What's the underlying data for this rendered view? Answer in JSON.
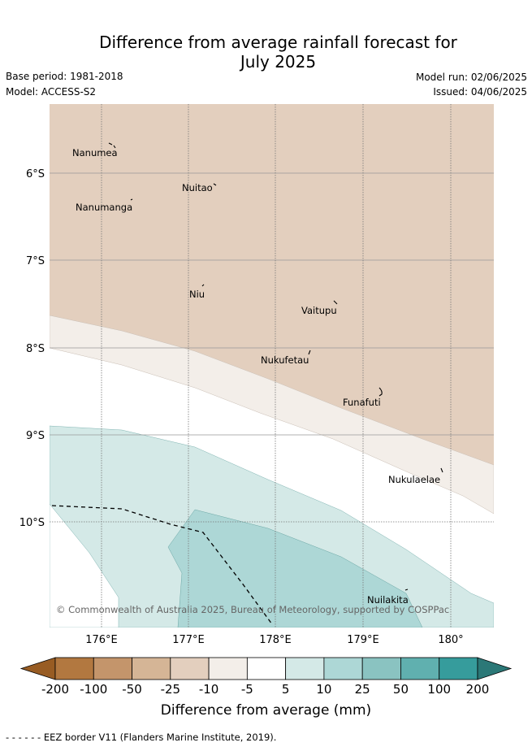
{
  "header": {
    "title_line1": "Difference from average rainfall forecast for",
    "title_line2": "July 2025",
    "base_period": "Base period: 1981-2018",
    "model": "Model: ACCESS-S2",
    "model_run": "Model run: 02/06/2025",
    "issued": "Issued: 04/06/2025"
  },
  "map": {
    "lat_labels": [
      "6°S",
      "7°S",
      "8°S",
      "9°S",
      "10°S"
    ],
    "lon_labels": [
      "176°E",
      "177°E",
      "178°E",
      "179°E",
      "180°"
    ],
    "islands": [
      "Nanumea",
      "Nuitao",
      "Nanumanga",
      "Niu",
      "Vaitupu",
      "Nukufetau",
      "Funafuti",
      "Nukulaelae",
      "Nuilakita"
    ],
    "copyright": "© Commonwealth of Australia 2025, Bureau of Meteorology, supported by COSPPac",
    "colors": {
      "minus25_to_minus10": "#e3cfbe",
      "minus10_to_minus5": "#f3eee9",
      "minus5_to_5": "#ffffff",
      "plus5_to_10": "#d4e9e7",
      "plus10_to_25": "#add7d6"
    }
  },
  "colorbar": {
    "ticks": [
      "-200",
      "-100",
      "-50",
      "-25",
      "-10",
      "-5",
      "5",
      "10",
      "25",
      "50",
      "100",
      "200"
    ],
    "colors": [
      "#985c23",
      "#b27840",
      "#c4956b",
      "#d5b596",
      "#e3cfbe",
      "#f3eee9",
      "#ffffff",
      "#d4e9e7",
      "#add7d6",
      "#8ac3c1",
      "#60b0af",
      "#369c9c",
      "#2b7877"
    ],
    "label": "Difference from average (mm)"
  },
  "footer": {
    "eez_note": "- -  - -  - - EEZ border V11 (Flanders Marine Institute, 2019)."
  }
}
